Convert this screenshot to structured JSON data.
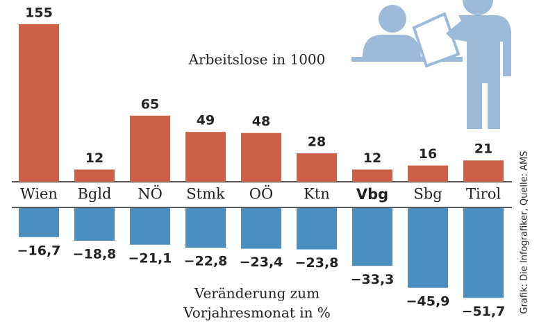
{
  "chart_data": [
    {
      "type": "bar",
      "title": "Arbeitslose in 1000",
      "categories": [
        "Wien",
        "Bgld",
        "NÖ",
        "Stmk",
        "OÖ",
        "Ktn",
        "Vbg",
        "Sbg",
        "Tirol"
      ],
      "highlight": 6,
      "values": [
        155,
        12,
        65,
        49,
        48,
        28,
        12,
        16,
        21
      ],
      "color": "#cc5f45"
    },
    {
      "type": "bar",
      "title": [
        "Veränderung zum",
        "Vorjahresmonat in %"
      ],
      "values": [
        -16.7,
        -18.8,
        -21.1,
        -22.8,
        -23.4,
        -23.8,
        -33.3,
        -45.9,
        -51.7
      ],
      "value_labels": [
        "−16,7",
        "−18,8",
        "−21,1",
        "−22,8",
        "−23,4",
        "−23,8",
        "−33,3",
        "−45,9",
        "−51,7"
      ],
      "color": "#4a8fc0"
    }
  ],
  "source": "Grafik: Die Infografiker, Quelle: AMS"
}
